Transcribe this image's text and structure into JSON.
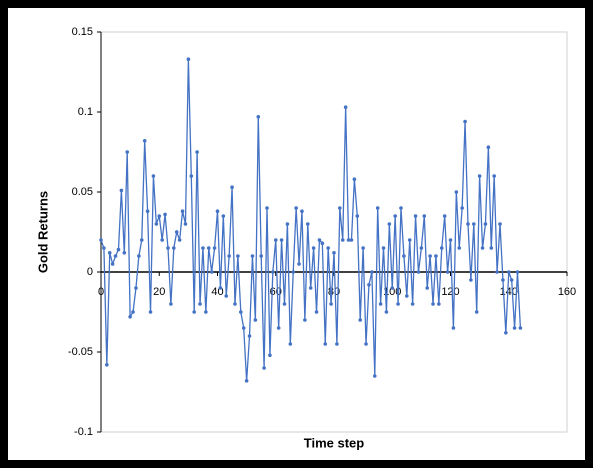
{
  "chart_data": {
    "type": "line",
    "xlabel": "Time step",
    "ylabel": "Gold Returns",
    "x": [
      0,
      1,
      2,
      3,
      4,
      5,
      6,
      7,
      8,
      9,
      10,
      11,
      12,
      13,
      14,
      15,
      16,
      17,
      18,
      19,
      20,
      21,
      22,
      23,
      24,
      25,
      26,
      27,
      28,
      29,
      30,
      31,
      32,
      33,
      34,
      35,
      36,
      37,
      38,
      39,
      40,
      41,
      42,
      43,
      44,
      45,
      46,
      47,
      48,
      49,
      50,
      51,
      52,
      53,
      54,
      55,
      56,
      57,
      58,
      59,
      60,
      61,
      62,
      63,
      64,
      65,
      66,
      67,
      68,
      69,
      70,
      71,
      72,
      73,
      74,
      75,
      76,
      77,
      78,
      79,
      80,
      81,
      82,
      83,
      84,
      85,
      86,
      87,
      88,
      89,
      90,
      91,
      92,
      93,
      94,
      95,
      96,
      97,
      98,
      99,
      100,
      101,
      102,
      103,
      104,
      105,
      106,
      107,
      108,
      109,
      110,
      111,
      112,
      113,
      114,
      115,
      116,
      117,
      118,
      119,
      120,
      121,
      122,
      123,
      124,
      125,
      126,
      127,
      128,
      129,
      130,
      131,
      132,
      133,
      134,
      135,
      136,
      137,
      138,
      139,
      140,
      141,
      142,
      143,
      144
    ],
    "series": [
      {
        "name": "Gold Returns",
        "color": "#4472c4",
        "values": [
          0.02,
          0.015,
          -0.058,
          0.012,
          0.005,
          0.01,
          0.014,
          0.051,
          0.012,
          0.075,
          -0.028,
          -0.025,
          -0.01,
          0.01,
          0.02,
          0.082,
          0.038,
          -0.025,
          0.06,
          0.03,
          0.035,
          0.02,
          0.036,
          0.015,
          -0.02,
          0.015,
          0.025,
          0.02,
          0.038,
          0.03,
          0.133,
          0.06,
          -0.025,
          0.075,
          -0.02,
          0.015,
          -0.025,
          0.015,
          0.0,
          0.015,
          0.038,
          -0.01,
          0.035,
          -0.015,
          0.01,
          0.053,
          -0.02,
          0.01,
          -0.025,
          -0.035,
          -0.068,
          -0.04,
          0.01,
          -0.03,
          0.097,
          0.01,
          -0.06,
          0.04,
          -0.052,
          0.0,
          0.02,
          -0.035,
          0.02,
          -0.02,
          0.03,
          -0.045,
          0.0,
          0.04,
          0.005,
          0.038,
          -0.03,
          0.03,
          -0.01,
          0.015,
          -0.025,
          0.02,
          0.018,
          -0.045,
          0.015,
          -0.02,
          0.012,
          -0.045,
          0.04,
          0.02,
          0.103,
          0.02,
          0.02,
          0.058,
          0.035,
          -0.03,
          0.015,
          -0.045,
          -0.008,
          0.0,
          -0.065,
          0.04,
          -0.02,
          0.015,
          -0.025,
          0.03,
          -0.01,
          0.035,
          -0.02,
          0.04,
          0.01,
          -0.015,
          0.02,
          -0.02,
          0.035,
          0.0,
          0.015,
          0.035,
          -0.01,
          0.01,
          -0.02,
          0.01,
          -0.02,
          0.015,
          0.035,
          0.0,
          0.02,
          -0.035,
          0.05,
          0.015,
          0.04,
          0.094,
          0.03,
          -0.005,
          0.03,
          -0.025,
          0.06,
          0.015,
          0.03,
          0.078,
          0.015,
          0.06,
          0.0,
          0.03,
          -0.005,
          -0.038,
          0.0,
          -0.005,
          -0.035,
          0.0,
          -0.035
        ]
      }
    ],
    "xlim": [
      0,
      160
    ],
    "xticks": [
      0,
      20,
      40,
      60,
      80,
      100,
      120,
      140,
      160
    ],
    "ylim": [
      -0.1,
      0.15
    ],
    "yticks": [
      -0.1,
      -0.05,
      0,
      0.05,
      0.1,
      0.15
    ],
    "grid": false
  }
}
